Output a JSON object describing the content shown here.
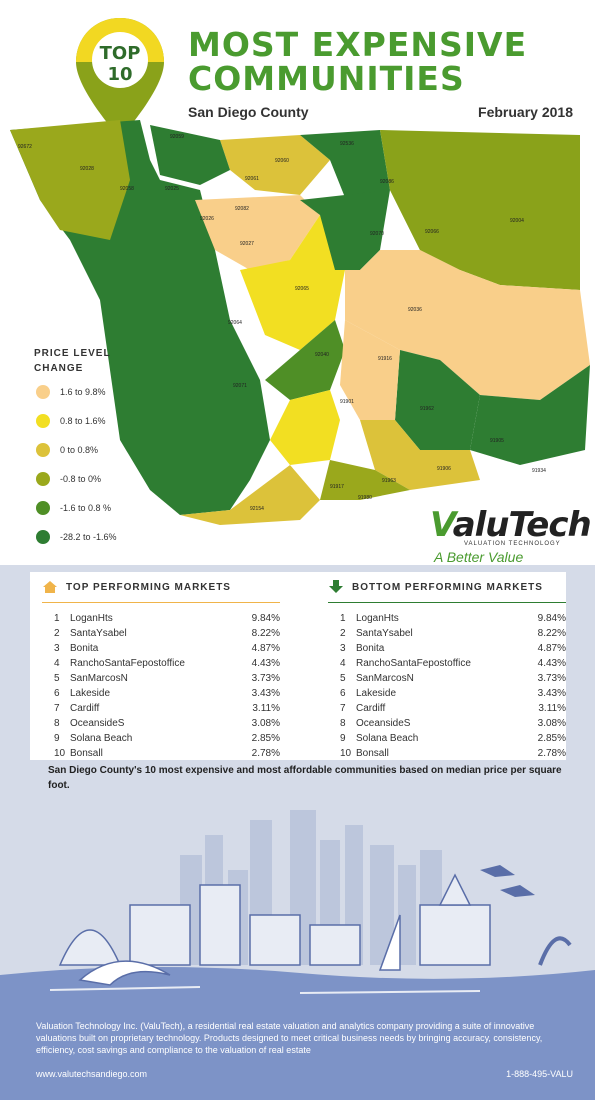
{
  "header": {
    "badge_top": "TOP",
    "badge_num": "10",
    "title": "MOST EXPENSIVE\nCOMMUNITIES",
    "subtitle": "San Diego County",
    "date": "February 2018"
  },
  "colors": {
    "green_dark": "#2e7d32",
    "green_title": "#4a9b2f",
    "olive": "#8aa21a",
    "yellow": "#e0c93a",
    "bright_yellow": "#f5e62a",
    "peach": "#f9cf8a",
    "footer_blue": "#7d93c7"
  },
  "legend": {
    "title": "PRICE LEVEL\nCHANGE",
    "items": [
      {
        "label": "1.6 to 9.8%",
        "color": "#f9cf8a"
      },
      {
        "label": "0.8 to 1.6%",
        "color": "#f2df22"
      },
      {
        "label": "0 to 0.8%",
        "color": "#dcc23a"
      },
      {
        "label": "-0.8 to 0%",
        "color": "#9aa81c"
      },
      {
        "label": "-1.6 to 0.8 %",
        "color": "#4f8f26"
      },
      {
        "label": "-28.2 to -1.6%",
        "color": "#2e7d32"
      }
    ]
  },
  "map_labels": [
    "92672",
    "92028",
    "92059",
    "92536",
    "92060",
    "92061",
    "92086",
    "92066",
    "92004",
    "92058",
    "92082",
    "92065",
    "92036",
    "92070",
    "92027",
    "92026",
    "92025",
    "91916",
    "91901",
    "91962",
    "91906",
    "91963",
    "91905",
    "91934",
    "91917",
    "91980",
    "92154",
    "92040",
    "92064",
    "92071"
  ],
  "brand": {
    "name_prefix": "V",
    "name_rest": "aluTech",
    "sub": "VALUATION TECHNOLOGY",
    "tagline": "A Better Value"
  },
  "top_markets": {
    "title": "TOP PERFORMING MARKETS",
    "rows": [
      {
        "n": "1",
        "name": "LoganHts",
        "value": "9.84%"
      },
      {
        "n": "2",
        "name": "SantaYsabel",
        "value": "8.22%"
      },
      {
        "n": "3",
        "name": "Bonita",
        "value": "4.87%"
      },
      {
        "n": "4",
        "name": "RanchoSantaFepostoffice",
        "value": "4.43%"
      },
      {
        "n": "5",
        "name": "SanMarcosN",
        "value": "3.73%"
      },
      {
        "n": "6",
        "name": "Lakeside",
        "value": "3.43%"
      },
      {
        "n": "7",
        "name": "Cardiff",
        "value": "3.11%"
      },
      {
        "n": "8",
        "name": "OceansideS",
        "value": "3.08%"
      },
      {
        "n": "9",
        "name": "Solana Beach",
        "value": "2.85%"
      },
      {
        "n": "10",
        "name": "Bonsall",
        "value": "2.78%"
      }
    ]
  },
  "bottom_markets": {
    "title": "BOTTOM PERFORMING MARKETS",
    "rows": [
      {
        "n": "1",
        "name": "LoganHts",
        "value": "9.84%"
      },
      {
        "n": "2",
        "name": "SantaYsabel",
        "value": "8.22%"
      },
      {
        "n": "3",
        "name": "Bonita",
        "value": "4.87%"
      },
      {
        "n": "4",
        "name": "RanchoSantaFepostoffice",
        "value": "4.43%"
      },
      {
        "n": "5",
        "name": "SanMarcosN",
        "value": "3.73%"
      },
      {
        "n": "6",
        "name": "Lakeside",
        "value": "3.43%"
      },
      {
        "n": "7",
        "name": "Cardiff",
        "value": "3.11%"
      },
      {
        "n": "8",
        "name": "OceansideS",
        "value": "3.08%"
      },
      {
        "n": "9",
        "name": "Solana Beach",
        "value": "2.85%"
      },
      {
        "n": "10",
        "name": "Bonsall",
        "value": "2.78%"
      }
    ]
  },
  "caption": "San Diego County's 10 most expensive and most affordable communities based on median price per square foot.",
  "footer": {
    "about": "Valuation Technology Inc. (ValuTech), a residential real estate valuation and analytics company providing a suite of innovative valuations built on proprietary technology. Products designed to meet critical business needs by bringing accuracy, consistency, efficiency, cost savings and compliance to the valuation of real estate",
    "website": "www.valutechsandiego.com",
    "phone": "1-888-495-VALU"
  }
}
